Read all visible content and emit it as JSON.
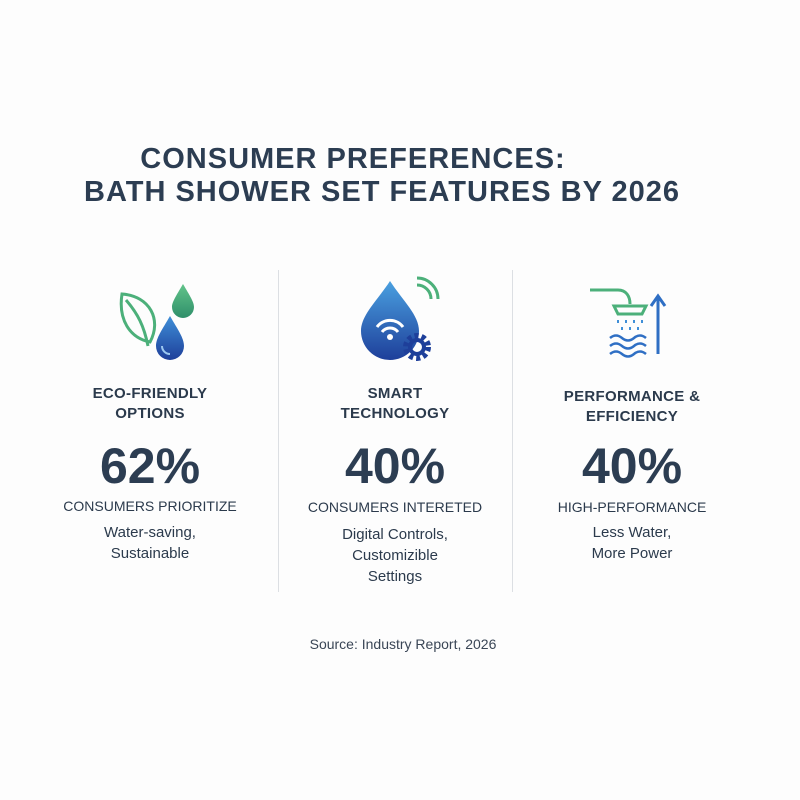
{
  "title": [
    "CONSUMER PREFERENCES:",
    "BATH SHOWER SET FEATURES BY 2026"
  ],
  "columns": [
    {
      "heading": [
        "ECO-FRIENDLY",
        "OPTIONS"
      ],
      "stat": "62%",
      "label": "CONSUMERS PRIORITIZE",
      "description": [
        "Water-saving,",
        "Sustainable"
      ]
    },
    {
      "heading": [
        "SMART",
        "TECHNOLOGY"
      ],
      "stat": "40%",
      "label": "CONSUMERS INTERETED",
      "description": [
        "Digital Controls,",
        "Customizible",
        "Settings"
      ]
    },
    {
      "heading": [
        "PERFORMANCE &",
        "EFFICIENCY"
      ],
      "stat": "40%",
      "label": "HIGH-PERFORMANCE",
      "description": [
        "Less Water,",
        "More Power"
      ]
    }
  ],
  "source": "Source: Industry Report, 2026"
}
